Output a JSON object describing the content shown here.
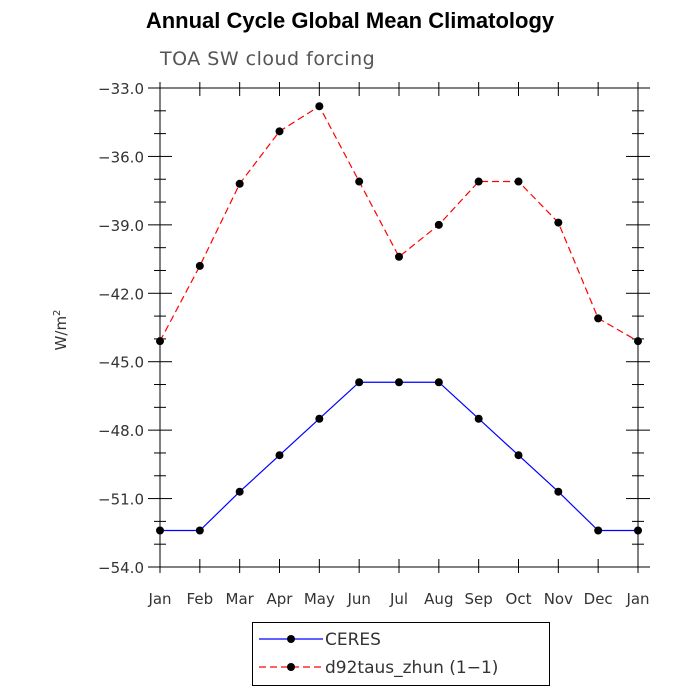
{
  "chart_data": {
    "type": "line",
    "title": "Annual Cycle Global Mean Climatology",
    "subtitle": "TOA SW cloud forcing",
    "xlabel": "",
    "ylabel": "W/m",
    "ylabel_superscript": "2",
    "categories": [
      "Jan",
      "Feb",
      "Mar",
      "Apr",
      "May",
      "Jun",
      "Jul",
      "Aug",
      "Sep",
      "Oct",
      "Nov",
      "Dec",
      "Jan"
    ],
    "ylim": [
      -54.0,
      -33.0
    ],
    "yticks": [
      -54.0,
      -51.0,
      -48.0,
      -45.0,
      -42.0,
      -39.0,
      -36.0,
      -33.0
    ],
    "ytick_labels": [
      "−54.0",
      "−51.0",
      "−48.0",
      "−45.0",
      "−42.0",
      "−39.0",
      "−36.0",
      "−33.0"
    ],
    "series": [
      {
        "name": "CERES",
        "color": "#0000ff",
        "dash": "solid",
        "values": [
          -52.4,
          -52.4,
          -50.7,
          -49.1,
          -47.5,
          -45.9,
          -45.9,
          -45.9,
          -47.5,
          -49.1,
          -50.7,
          -52.4,
          -52.4
        ]
      },
      {
        "name": "d92taus_zhun (1−1)",
        "color": "#ff0000",
        "dash": "dashed",
        "values": [
          -44.1,
          -40.8,
          -37.2,
          -34.9,
          -33.8,
          -37.1,
          -40.4,
          -39.0,
          -37.1,
          -37.1,
          -38.9,
          -43.1,
          -44.1
        ]
      }
    ]
  }
}
